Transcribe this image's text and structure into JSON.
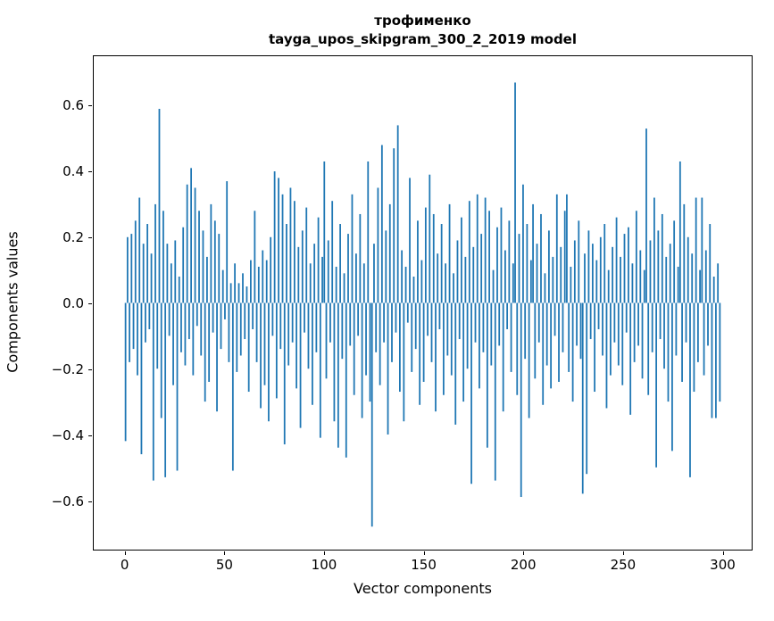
{
  "title": {
    "line1": "трофименко",
    "line2": "tayga_upos_skipgram_300_2_2019 model"
  },
  "chart_data": {
    "type": "bar",
    "title": "трофименко\ntayga_upos_skipgram_300_2_2019 model",
    "xlabel": "Vector components",
    "ylabel": "Components values",
    "xlim": [
      -16,
      315
    ],
    "ylim": [
      -0.75,
      0.75
    ],
    "x_ticks": [
      0,
      50,
      100,
      150,
      200,
      250,
      300
    ],
    "x_tick_labels": [
      "0",
      "50",
      "100",
      "150",
      "200",
      "250",
      "300"
    ],
    "y_ticks": [
      -0.6,
      -0.4,
      -0.2,
      0.0,
      0.2,
      0.4,
      0.6
    ],
    "y_tick_labels": [
      "−0.6",
      "−0.4",
      "−0.2",
      "0.0",
      "0.2",
      "0.4",
      "0.6"
    ],
    "bar_color": "#1f77b4",
    "grid": false,
    "legend": null,
    "n_components": 300,
    "values": [
      -0.42,
      0.2,
      -0.18,
      0.21,
      -0.14,
      0.25,
      -0.22,
      0.32,
      -0.46,
      0.18,
      -0.12,
      0.24,
      -0.08,
      0.15,
      -0.54,
      0.3,
      -0.2,
      0.59,
      -0.35,
      0.28,
      -0.53,
      0.18,
      -0.1,
      0.12,
      -0.25,
      0.19,
      -0.51,
      0.08,
      -0.15,
      0.23,
      -0.19,
      0.36,
      -0.11,
      0.41,
      -0.22,
      0.35,
      -0.07,
      0.28,
      -0.16,
      0.22,
      -0.3,
      0.14,
      -0.24,
      0.3,
      -0.09,
      0.25,
      -0.33,
      0.21,
      -0.14,
      0.1,
      -0.05,
      0.37,
      -0.18,
      0.06,
      -0.51,
      0.12,
      -0.21,
      0.06,
      -0.16,
      0.09,
      -0.11,
      0.05,
      -0.27,
      0.13,
      -0.08,
      0.28,
      -0.18,
      0.11,
      -0.32,
      0.16,
      -0.25,
      0.13,
      -0.36,
      0.2,
      -0.1,
      0.4,
      -0.29,
      0.38,
      -0.14,
      0.33,
      -0.43,
      0.24,
      -0.19,
      0.35,
      -0.12,
      0.31,
      -0.26,
      0.17,
      -0.38,
      0.22,
      -0.09,
      0.29,
      -0.2,
      0.12,
      -0.31,
      0.18,
      -0.15,
      0.26,
      -0.41,
      0.14,
      0.43,
      -0.23,
      0.19,
      -0.12,
      0.31,
      -0.36,
      0.11,
      -0.44,
      0.24,
      -0.17,
      0.09,
      -0.47,
      0.21,
      -0.13,
      0.33,
      -0.28,
      0.15,
      -0.1,
      0.27,
      -0.35,
      0.12,
      -0.22,
      0.43,
      -0.3,
      -0.68,
      0.18,
      -0.15,
      0.35,
      -0.25,
      0.48,
      -0.12,
      0.22,
      -0.4,
      0.3,
      -0.18,
      0.47,
      -0.09,
      0.54,
      -0.27,
      0.16,
      -0.36,
      0.11,
      -0.06,
      0.38,
      -0.21,
      0.08,
      -0.14,
      0.25,
      -0.31,
      0.13,
      -0.24,
      0.29,
      -0.1,
      0.39,
      -0.18,
      0.27,
      -0.33,
      0.15,
      -0.08,
      0.24,
      -0.28,
      0.12,
      -0.16,
      0.3,
      -0.22,
      0.09,
      -0.37,
      0.19,
      -0.11,
      0.26,
      -0.3,
      0.14,
      -0.2,
      0.31,
      -0.55,
      0.17,
      -0.12,
      0.33,
      -0.26,
      0.21,
      -0.15,
      0.32,
      -0.44,
      0.28,
      -0.19,
      0.1,
      -0.54,
      0.23,
      -0.13,
      0.29,
      -0.33,
      0.16,
      -0.08,
      0.25,
      -0.21,
      0.12,
      0.67,
      -0.28,
      0.21,
      -0.59,
      0.36,
      -0.17,
      0.24,
      -0.35,
      0.13,
      0.3,
      -0.23,
      0.18,
      -0.12,
      0.27,
      -0.31,
      0.09,
      -0.19,
      0.22,
      -0.26,
      0.14,
      -0.1,
      0.33,
      -0.24,
      0.17,
      -0.15,
      0.28,
      0.33,
      -0.21,
      0.11,
      -0.3,
      0.19,
      -0.13,
      0.25,
      -0.17,
      -0.58,
      0.15,
      -0.52,
      0.22,
      -0.11,
      0.18,
      -0.27,
      0.13,
      -0.08,
      0.2,
      -0.16,
      0.24,
      -0.32,
      0.1,
      -0.22,
      0.17,
      -0.12,
      0.26,
      -0.19,
      0.14,
      -0.25,
      0.21,
      -0.09,
      0.23,
      -0.34,
      0.12,
      -0.18,
      0.28,
      -0.13,
      0.16,
      -0.23,
      0.1,
      0.53,
      -0.28,
      0.19,
      -0.15,
      0.32,
      -0.5,
      0.22,
      -0.11,
      0.27,
      -0.2,
      0.14,
      -0.3,
      0.18,
      -0.45,
      0.25,
      -0.16,
      0.11,
      0.43,
      -0.24,
      0.3,
      -0.12,
      0.2,
      -0.53,
      0.15,
      -0.27,
      0.32,
      -0.18,
      0.1,
      0.32,
      -0.22,
      0.16,
      -0.13,
      0.24,
      -0.35,
      0.08,
      -0.35,
      0.12,
      -0.3
    ]
  }
}
